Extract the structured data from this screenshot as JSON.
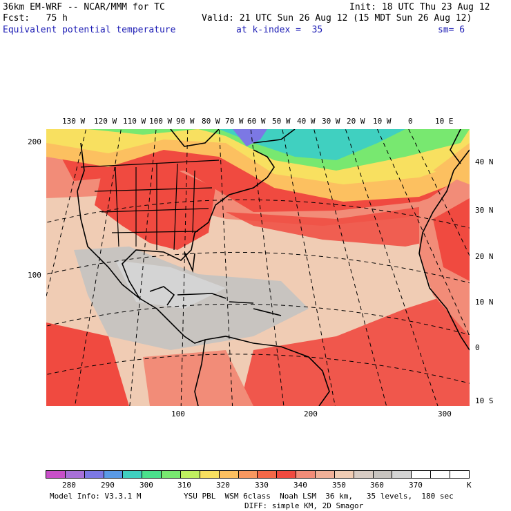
{
  "header": {
    "model": "36km EM-WRF -- NCAR/MMM for TC",
    "init": "Init: 18 UTC Thu 23 Aug 12",
    "fcst": "Fcst:   75 h",
    "valid": "Valid: 21 UTC Sun 26 Aug 12 (15 MDT Sun 26 Aug 12)",
    "field": "Equivalent potential temperature",
    "level": "at k-index =  35",
    "smooth": "sm= 6"
  },
  "map": {
    "lon_labels": [
      "130 W",
      "120 W",
      "110 W",
      "100 W",
      "90 W",
      "80 W",
      "70 W",
      "60 W",
      "50 W",
      "40 W",
      "30 W",
      "20 W",
      "10 W",
      "0",
      "10 E"
    ],
    "lat_labels": [
      "40 N",
      "30 N",
      "20 N",
      "10 N",
      "0",
      "10 S"
    ],
    "grid_x_labels": [
      "100",
      "200",
      "300"
    ],
    "grid_y_labels": [
      "200",
      "100"
    ]
  },
  "colorbar": {
    "colors": [
      "#c84fc8",
      "#a870d8",
      "#7c78e4",
      "#5a9ae6",
      "#40d0c0",
      "#4ae08c",
      "#78e870",
      "#c0f060",
      "#f8e060",
      "#fcc060",
      "#f89860",
      "#f46848",
      "#f04a40",
      "#f28c78",
      "#f0b098",
      "#f0ccb4",
      "#d8ccc4",
      "#c8c4c0",
      "#d4d4d4",
      "#ffffff",
      "#ffffff",
      "#ffffff"
    ],
    "labels": [
      "280",
      "290",
      "300",
      "310",
      "320",
      "330",
      "340",
      "350",
      "360",
      "370"
    ],
    "unit": "K"
  },
  "footer": {
    "model_info": "Model Info: V3.3.1 M",
    "physics": "YSU PBL  WSM 6class  Noah LSM  36 km,   35 levels,  180 sec",
    "diffusion": "DIFF: simple KM, 2D Smagor"
  }
}
